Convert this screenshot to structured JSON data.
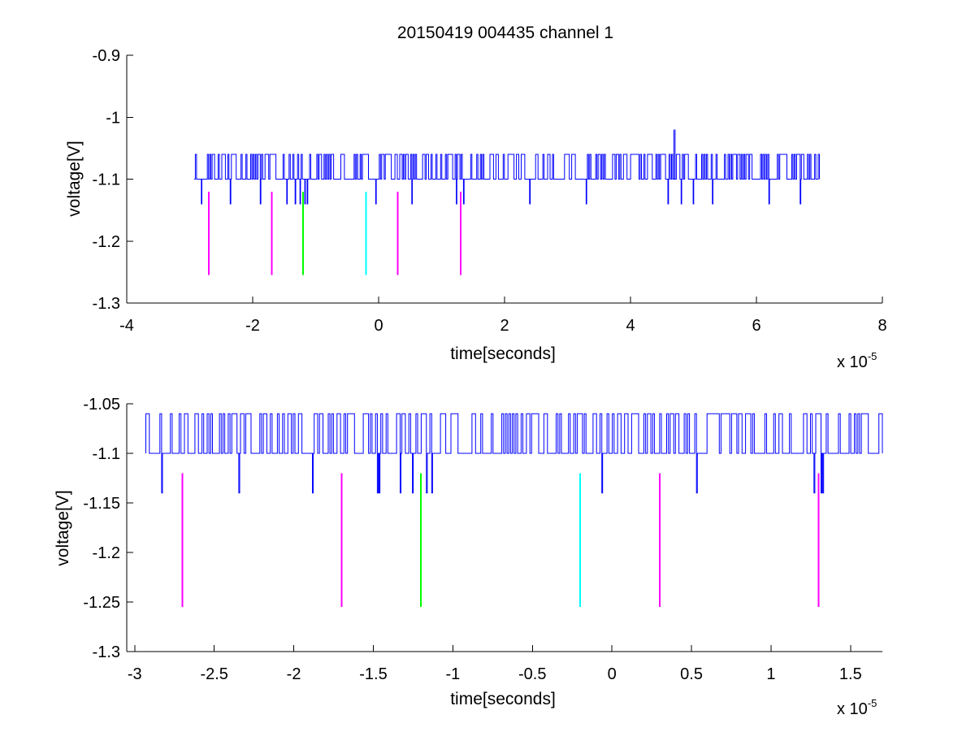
{
  "figure": {
    "title": "20150419 004435 channel 1"
  },
  "chart_data": [
    {
      "type": "line",
      "title": "20150419 004435 channel 1",
      "xlabel": "time[seconds]",
      "ylabel": "voltage[V]",
      "x_multiplier_label": "x 10",
      "x_multiplier_exponent": "-5",
      "xlim": [
        -4,
        8
      ],
      "ylim": [
        -1.3,
        -0.9
      ],
      "xticks": [
        "-4",
        "-2",
        "0",
        "2",
        "4",
        "6",
        "8"
      ],
      "yticks": [
        "-0.9",
        "-1",
        "-1.1",
        "-1.2",
        "-1.3"
      ],
      "grid": false,
      "series": [
        {
          "color": "#0000ff",
          "x_range": [
            -2.93,
            7.0
          ],
          "baseline": -1.1,
          "high_level": -1.06,
          "low_level": -1.14,
          "spike": {
            "x": 4.7,
            "y": -1.02
          },
          "low_dips": [
            -2.82,
            -2.35,
            -1.88,
            -1.46,
            -1.33,
            -1.25,
            -1.17,
            -1.13,
            -0.05,
            0.53,
            1.23,
            1.35,
            2.4,
            3.3,
            4.6,
            4.8,
            5.0,
            5.3,
            6.2,
            6.7
          ]
        }
      ],
      "markers": [
        {
          "x": -2.7,
          "y_top": -1.12,
          "y_bottom": -1.255,
          "color": "#ff00ff"
        },
        {
          "x": -1.7,
          "y_top": -1.12,
          "y_bottom": -1.255,
          "color": "#ff00ff"
        },
        {
          "x": -1.2,
          "y_top": -1.12,
          "y_bottom": -1.255,
          "color": "#00ff00"
        },
        {
          "x": -0.2,
          "y_top": -1.12,
          "y_bottom": -1.255,
          "color": "#00ffff"
        },
        {
          "x": 0.3,
          "y_top": -1.12,
          "y_bottom": -1.255,
          "color": "#ff00ff"
        },
        {
          "x": 1.3,
          "y_top": -1.12,
          "y_bottom": -1.255,
          "color": "#ff00ff"
        }
      ]
    },
    {
      "type": "line",
      "title": "",
      "xlabel": "time[seconds]",
      "ylabel": "voltage[V]",
      "x_multiplier_label": "x 10",
      "x_multiplier_exponent": "-5",
      "xlim": [
        -3.05,
        1.7
      ],
      "ylim": [
        -1.3,
        -1.05
      ],
      "xticks": [
        "-3",
        "-2.5",
        "-2",
        "-1.5",
        "-1",
        "-0.5",
        "0",
        "0.5",
        "1",
        "1.5"
      ],
      "xtick_values": [
        -3,
        -2.5,
        -2,
        -1.5,
        -1,
        -0.5,
        0,
        0.5,
        1,
        1.5
      ],
      "yticks": [
        "-1.05",
        "-1.1",
        "-1.15",
        "-1.2",
        "-1.25",
        "-1.3"
      ],
      "ytick_values": [
        -1.05,
        -1.1,
        -1.15,
        -1.2,
        -1.25,
        -1.3
      ],
      "grid": false,
      "series": [
        {
          "color": "#0000ff",
          "x_range": [
            -2.93,
            1.7
          ],
          "baseline": -1.1,
          "high_level": -1.06,
          "low_level": -1.14,
          "low_dips": [
            -2.83,
            -2.35,
            -1.88,
            -1.47,
            -1.33,
            -1.25,
            -1.17,
            -1.13,
            -0.06,
            0.53,
            1.27,
            1.32
          ]
        }
      ],
      "markers": [
        {
          "x": -2.7,
          "y_top": -1.12,
          "y_bottom": -1.255,
          "color": "#ff00ff"
        },
        {
          "x": -1.7,
          "y_top": -1.12,
          "y_bottom": -1.255,
          "color": "#ff00ff"
        },
        {
          "x": -1.2,
          "y_top": -1.12,
          "y_bottom": -1.255,
          "color": "#00ff00"
        },
        {
          "x": -0.2,
          "y_top": -1.12,
          "y_bottom": -1.255,
          "color": "#00ffff"
        },
        {
          "x": 0.3,
          "y_top": -1.12,
          "y_bottom": -1.255,
          "color": "#ff00ff"
        },
        {
          "x": 1.3,
          "y_top": -1.12,
          "y_bottom": -1.255,
          "color": "#ff00ff"
        }
      ]
    }
  ]
}
